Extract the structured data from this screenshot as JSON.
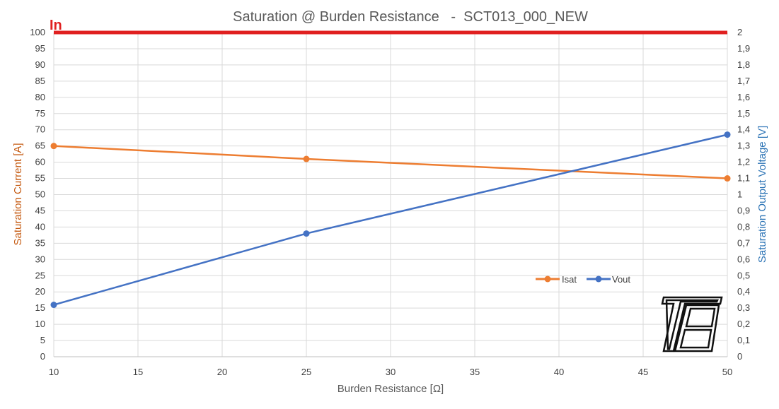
{
  "chart_data": {
    "type": "line",
    "title": "Saturation @ Burden Resistance   -  SCT013_000_NEW",
    "xlabel": "Burden Resistance [Ω]",
    "ylabel_left": "Saturation Current [A]",
    "ylabel_right": "Saturation Output Voltage [V]",
    "xlim": [
      10,
      50
    ],
    "ylim_left": [
      0,
      100
    ],
    "ylim_right": [
      0,
      2
    ],
    "x_ticks": [
      "10",
      "15",
      "20",
      "25",
      "30",
      "35",
      "40",
      "45",
      "50"
    ],
    "y_left_ticks": [
      "0",
      "5",
      "10",
      "15",
      "20",
      "25",
      "30",
      "35",
      "40",
      "45",
      "50",
      "55",
      "60",
      "65",
      "70",
      "75",
      "80",
      "85",
      "90",
      "95",
      "100"
    ],
    "y_right_ticks": [
      "0",
      "0,1",
      "0,2",
      "0,3",
      "0,4",
      "0,5",
      "0,6",
      "0,7",
      "0,8",
      "0,9",
      "1",
      "1,1",
      "1,2",
      "1,3",
      "1,4",
      "1,5",
      "1,6",
      "1,7",
      "1,8",
      "1,9",
      "2"
    ],
    "grid": true,
    "legend_position": "center-right",
    "series": [
      {
        "name": "Isat",
        "axis": "left",
        "color": "#ED7D31",
        "x": [
          10,
          25,
          50
        ],
        "values": [
          65,
          61,
          55
        ]
      },
      {
        "name": "Vout",
        "axis": "right",
        "color": "#4472C4",
        "x": [
          10,
          25,
          50
        ],
        "values": [
          0.32,
          0.76,
          1.37
        ]
      }
    ],
    "reference_line": {
      "label": "In",
      "value": 100,
      "axis": "left",
      "color": "#E02020"
    },
    "left_axis_title_color": "#C55A11",
    "right_axis_title_color": "#2E75B6"
  },
  "logo": {
    "name": "tb-logo-icon"
  }
}
